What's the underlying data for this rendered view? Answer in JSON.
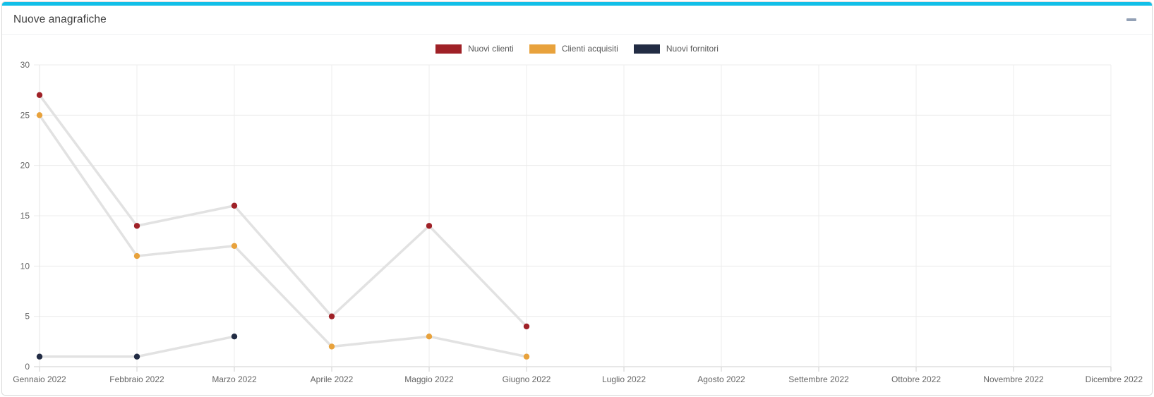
{
  "card": {
    "title": "Nuove anagrafiche",
    "accent_color": "#12bfe8",
    "collapse_icon": "minimize-dash"
  },
  "chart_data": {
    "type": "line",
    "title": "Nuove anagrafiche",
    "categories": [
      "Gennaio 2022",
      "Febbraio 2022",
      "Marzo 2022",
      "Aprile 2022",
      "Maggio 2022",
      "Giugno 2022",
      "Luglio 2022",
      "Agosto 2022",
      "Settembre 2022",
      "Ottobre 2022",
      "Novembre 2022",
      "Dicembre 2022"
    ],
    "series": [
      {
        "name": "Nuovi clienti",
        "color": "#9f2127",
        "values": [
          27,
          14,
          16,
          5,
          14,
          4,
          null,
          null,
          null,
          null,
          null,
          null
        ]
      },
      {
        "name": "Clienti acquisiti",
        "color": "#e8a23c",
        "values": [
          25,
          11,
          12,
          2,
          3,
          1,
          null,
          null,
          null,
          null,
          null,
          null
        ]
      },
      {
        "name": "Nuovi fornitori",
        "color": "#222c44",
        "values": [
          1,
          1,
          3,
          null,
          null,
          null,
          null,
          null,
          null,
          null,
          null,
          null
        ]
      }
    ],
    "xlabel": "",
    "ylabel": "",
    "ylim": [
      0,
      30
    ],
    "yticks": [
      0,
      5,
      10,
      15,
      20,
      25,
      30
    ],
    "grid": true,
    "legend_position": "top-center",
    "connector_color": "#e2e2e2",
    "grid_color": "#ececec",
    "axis_color": "#cfcfcf",
    "tick_label_color": "#666666"
  }
}
